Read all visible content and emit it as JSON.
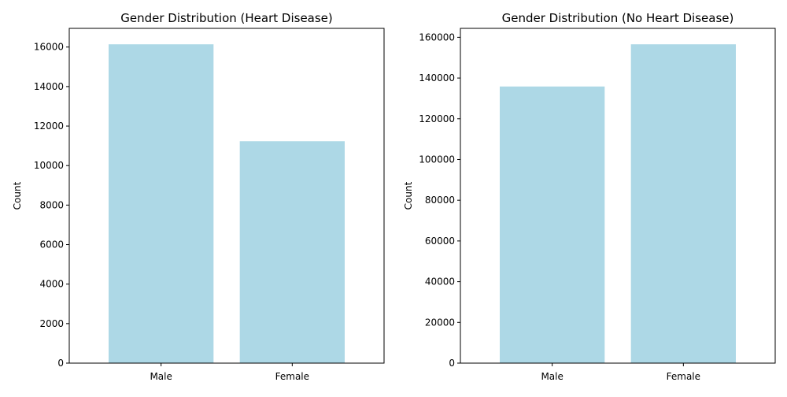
{
  "chart_data": [
    {
      "type": "bar",
      "title": "Gender Distribution (Heart Disease)",
      "xlabel": "",
      "ylabel": "Count",
      "categories": [
        "Male",
        "Female"
      ],
      "values": [
        16139,
        11234
      ],
      "ylim": [
        0,
        16946
      ],
      "yticks": [
        0,
        2000,
        4000,
        6000,
        8000,
        10000,
        12000,
        14000,
        16000
      ],
      "bar_color": "#add8e6",
      "grid": false
    },
    {
      "type": "bar",
      "title": "Gender Distribution (No Heart Disease)",
      "xlabel": "",
      "ylabel": "Count",
      "categories": [
        "Male",
        "Female"
      ],
      "values": [
        135851,
        156571
      ],
      "ylim": [
        0,
        164400
      ],
      "yticks": [
        0,
        20000,
        40000,
        60000,
        80000,
        100000,
        120000,
        140000,
        160000
      ],
      "bar_color": "#add8e6",
      "grid": false
    }
  ]
}
